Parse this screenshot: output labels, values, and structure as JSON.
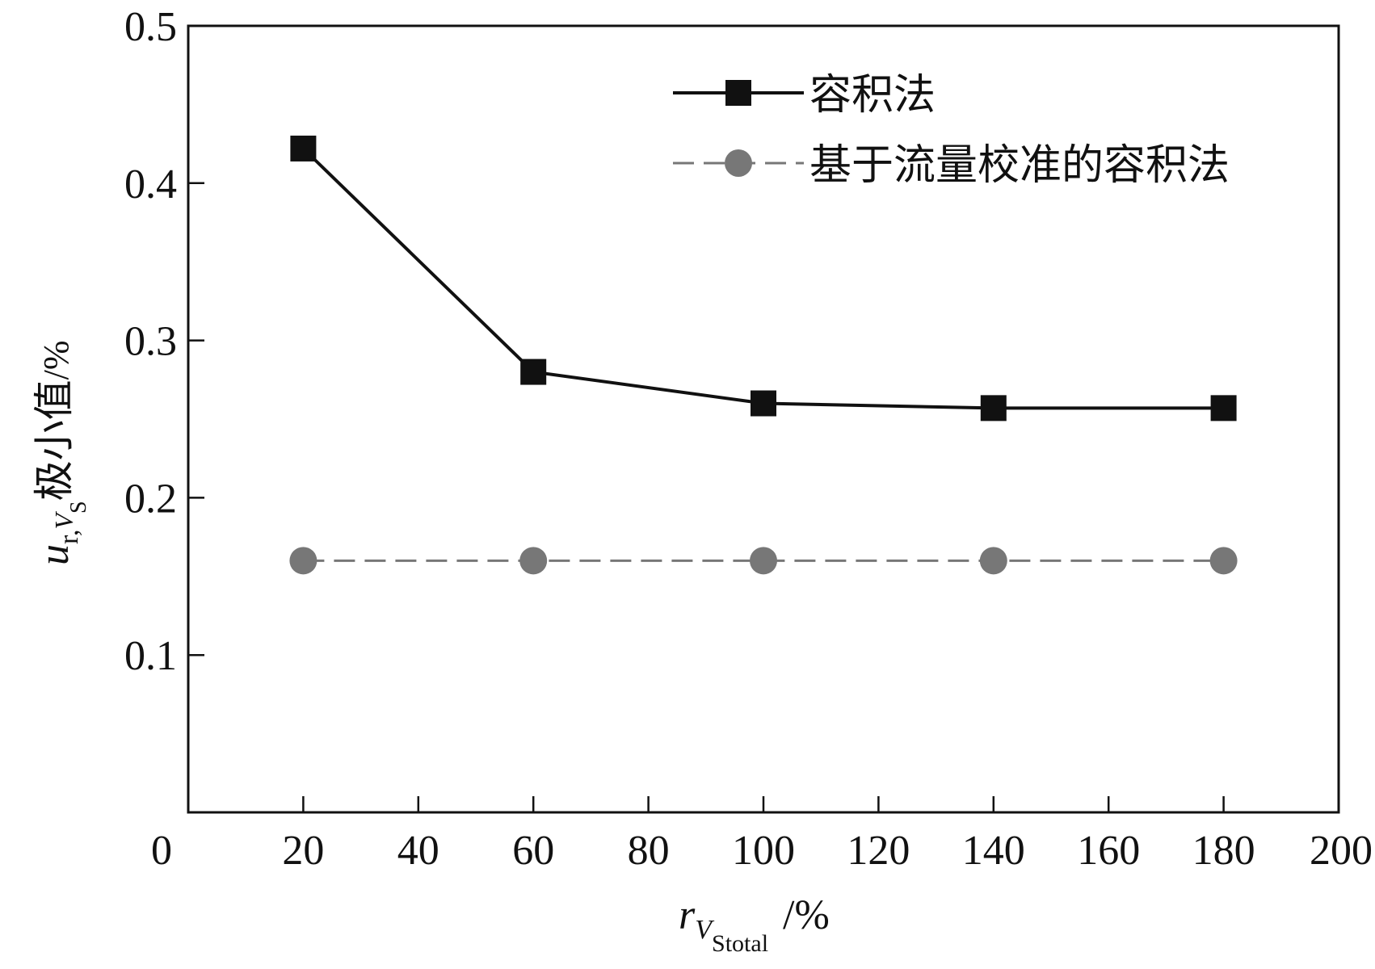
{
  "chart_data": {
    "type": "line",
    "title": "",
    "xlabel": {
      "main": "r",
      "sub1": "V",
      "sub2": "Stotal",
      "unit": "/%"
    },
    "ylabel": {
      "main": "u",
      "sub1": "r,",
      "sub2": "V",
      "sub3": "S",
      "text": "极小值",
      "unit": "/%"
    },
    "xlim": [
      0,
      200
    ],
    "ylim": [
      0,
      0.5
    ],
    "xticks": [
      0,
      20,
      40,
      60,
      80,
      100,
      120,
      140,
      160,
      180,
      200
    ],
    "xtick_labels": [
      "0",
      "20",
      "40",
      "60",
      "80",
      "100",
      "120",
      "140",
      "160",
      "180",
      "200"
    ],
    "yticks": [
      0.1,
      0.2,
      0.3,
      0.4,
      0.5
    ],
    "ytick_labels": [
      "0.1",
      "0.2",
      "0.3",
      "0.4",
      "0.5"
    ],
    "grid": false,
    "legend_position": "top-right",
    "series": [
      {
        "name": "容积法",
        "color": "#111111",
        "line_style": "solid",
        "marker": "square",
        "x": [
          20,
          60,
          100,
          140,
          180
        ],
        "y": [
          0.422,
          0.28,
          0.26,
          0.257,
          0.257
        ]
      },
      {
        "name": "基于流量校准的容积法",
        "color": "#777777",
        "line_style": "dashed",
        "marker": "circle",
        "x": [
          20,
          60,
          100,
          140,
          180
        ],
        "y": [
          0.16,
          0.16,
          0.16,
          0.16,
          0.16
        ]
      }
    ]
  }
}
